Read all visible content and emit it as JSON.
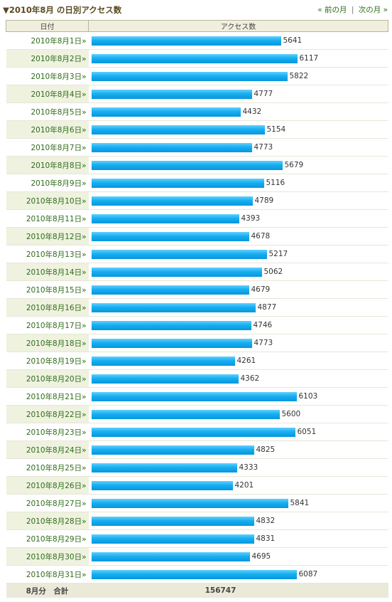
{
  "header": {
    "title": "▼2010年8月 の日別アクセス数",
    "prev_month": "« 前の月",
    "separator": "|",
    "next_month": "次の月 »"
  },
  "table": {
    "col_date": "日付",
    "col_access": "アクセス数",
    "total_label": "8月分　合計",
    "total_value": "156747"
  },
  "chart_data": {
    "type": "bar",
    "orientation": "horizontal",
    "title": "▼2010年8月 の日別アクセス数",
    "xlabel": "アクセス数",
    "ylabel": "日付",
    "categories": [
      "2010年8月1日»",
      "2010年8月2日»",
      "2010年8月3日»",
      "2010年8月4日»",
      "2010年8月5日»",
      "2010年8月6日»",
      "2010年8月7日»",
      "2010年8月8日»",
      "2010年8月9日»",
      "2010年8月10日»",
      "2010年8月11日»",
      "2010年8月12日»",
      "2010年8月13日»",
      "2010年8月14日»",
      "2010年8月15日»",
      "2010年8月16日»",
      "2010年8月17日»",
      "2010年8月18日»",
      "2010年8月19日»",
      "2010年8月20日»",
      "2010年8月21日»",
      "2010年8月22日»",
      "2010年8月23日»",
      "2010年8月24日»",
      "2010年8月25日»",
      "2010年8月26日»",
      "2010年8月27日»",
      "2010年8月28日»",
      "2010年8月29日»",
      "2010年8月30日»",
      "2010年8月31日»"
    ],
    "values": [
      5641,
      6117,
      5822,
      4777,
      4432,
      5154,
      4773,
      5679,
      5116,
      4789,
      4393,
      4678,
      5217,
      5062,
      4679,
      4877,
      4746,
      4773,
      4261,
      4362,
      6103,
      5600,
      6051,
      4825,
      4333,
      4201,
      5841,
      4832,
      4831,
      4695,
      6087
    ],
    "xlim": [
      0,
      6117
    ],
    "grid": false,
    "bar_color": "#12a8ec"
  }
}
